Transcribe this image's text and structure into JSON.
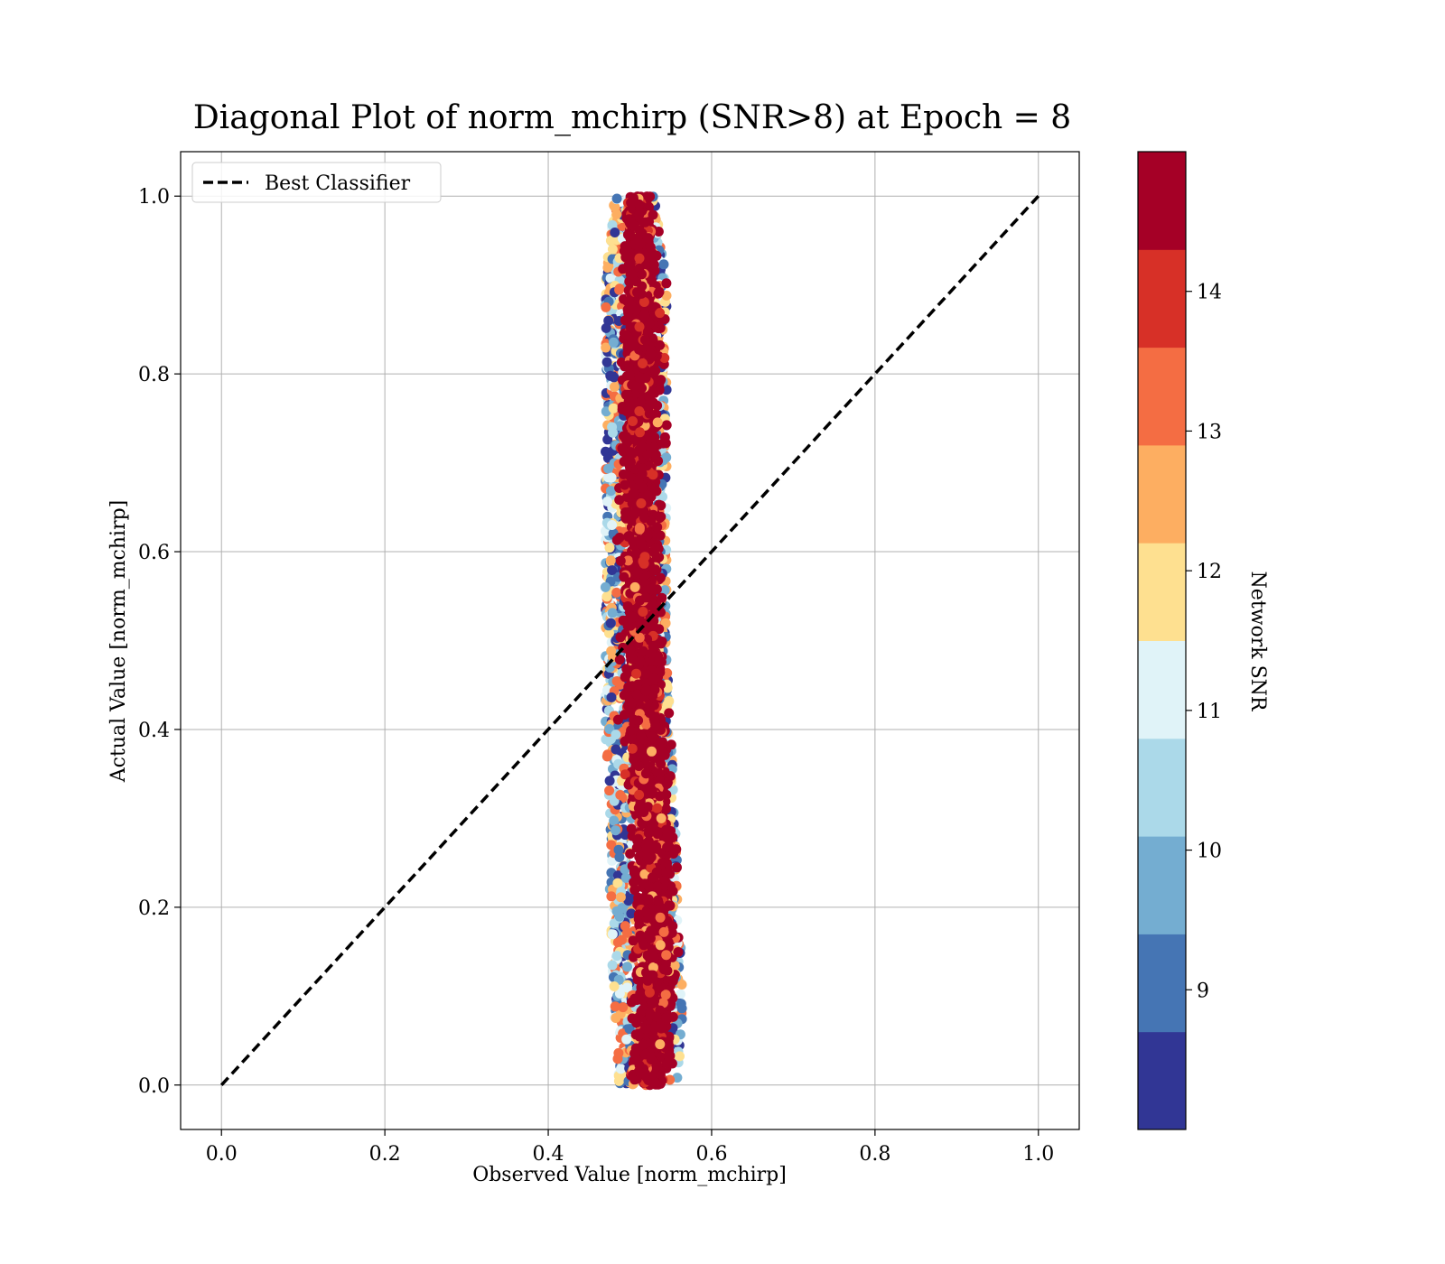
{
  "chart_data": {
    "type": "scatter",
    "title": "Diagonal Plot of norm_mchirp (SNR>8) at Epoch = 8",
    "xlabel": "Observed Value [norm_mchirp]",
    "ylabel": "Actual Value [norm_mchirp]",
    "xlim": [
      -0.05,
      1.05
    ],
    "ylim": [
      -0.05,
      1.05
    ],
    "xticks": [
      "0.0",
      "0.2",
      "0.4",
      "0.6",
      "0.8",
      "1.0"
    ],
    "yticks": [
      "0.0",
      "0.2",
      "0.4",
      "0.6",
      "0.8",
      "1.0"
    ],
    "grid": true,
    "legend": {
      "placement": "upper-left",
      "entries": [
        {
          "label": "Best Classifier",
          "style": "dashed",
          "color": "#000000"
        }
      ]
    },
    "reference_line": {
      "name": "Best Classifier",
      "x": [
        0.0,
        1.0
      ],
      "y": [
        0.0,
        1.0
      ]
    },
    "scatter_summary": {
      "description_points": [
        {
          "y": 0.0,
          "x_center": 0.525,
          "x_min": 0.485,
          "x_max": 0.56
        },
        {
          "y": 0.1,
          "x_center": 0.53,
          "x_min": 0.48,
          "x_max": 0.565
        },
        {
          "y": 0.2,
          "x_center": 0.53,
          "x_min": 0.475,
          "x_max": 0.56
        },
        {
          "y": 0.3,
          "x_center": 0.525,
          "x_min": 0.475,
          "x_max": 0.555
        },
        {
          "y": 0.4,
          "x_center": 0.52,
          "x_min": 0.47,
          "x_max": 0.55
        },
        {
          "y": 0.5,
          "x_center": 0.515,
          "x_min": 0.47,
          "x_max": 0.545
        },
        {
          "y": 0.6,
          "x_center": 0.515,
          "x_min": 0.47,
          "x_max": 0.545
        },
        {
          "y": 0.7,
          "x_center": 0.515,
          "x_min": 0.47,
          "x_max": 0.545
        },
        {
          "y": 0.8,
          "x_center": 0.515,
          "x_min": 0.47,
          "x_max": 0.545
        },
        {
          "y": 0.9,
          "x_center": 0.515,
          "x_min": 0.47,
          "x_max": 0.545
        },
        {
          "y": 1.0,
          "x_center": 0.51,
          "x_min": 0.48,
          "x_max": 0.53
        }
      ],
      "color_variable": "Network SNR",
      "dominant_snr": 14.5
    },
    "colorbar": {
      "label": "Network SNR",
      "range": [
        8,
        15
      ],
      "ticks": [
        "9",
        "10",
        "11",
        "12",
        "13",
        "14"
      ],
      "tick_values": [
        9,
        10,
        11,
        12,
        13,
        14
      ],
      "colors": [
        "#313695",
        "#4575b4",
        "#74add1",
        "#abd9e9",
        "#e0f3f8",
        "#fee090",
        "#fdae61",
        "#f46d43",
        "#d73027",
        "#a50026"
      ]
    }
  }
}
